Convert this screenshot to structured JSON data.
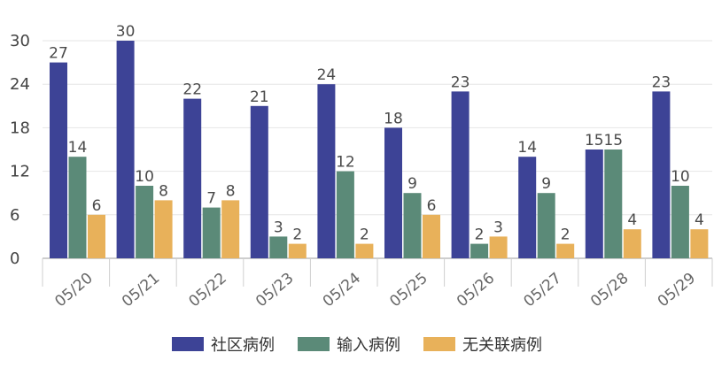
{
  "chart_data": {
    "type": "bar",
    "title": "",
    "xlabel": "",
    "ylabel": "",
    "categories": [
      "05/20",
      "05/21",
      "05/22",
      "05/23",
      "05/24",
      "05/25",
      "05/26",
      "05/27",
      "05/28",
      "05/29"
    ],
    "ylim": [
      0,
      30
    ],
    "yticks": [
      0,
      6,
      12,
      18,
      24,
      30
    ],
    "grid": true,
    "legend_position": "bottom-center",
    "series": [
      {
        "name": "社区病例",
        "color": "#3d4396",
        "values": [
          27,
          30,
          22,
          21,
          24,
          18,
          23,
          14,
          15,
          23
        ]
      },
      {
        "name": "输入病例",
        "color": "#5b8a78",
        "values": [
          14,
          10,
          7,
          3,
          12,
          9,
          2,
          9,
          15,
          10
        ]
      },
      {
        "name": "无关联病例",
        "color": "#e8b15a",
        "values": [
          6,
          8,
          8,
          2,
          2,
          6,
          3,
          2,
          4,
          4
        ]
      }
    ]
  }
}
